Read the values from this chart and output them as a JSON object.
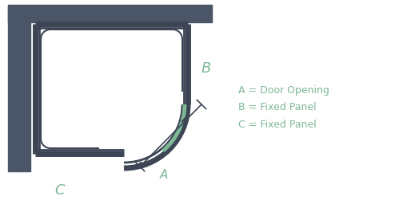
{
  "bg_color": "#ffffff",
  "wall_color": "#4a5568",
  "frame_color": "#3d4555",
  "door_arc_color": "#7db896",
  "label_color": "#7db896",
  "legend_color": "#7db896",
  "labels": {
    "A": "A = Door Opening",
    "B": "B = Fixed Panel",
    "C": "C = Fixed Panel"
  },
  "figsize": [
    5.24,
    2.61
  ],
  "dpi": 100
}
